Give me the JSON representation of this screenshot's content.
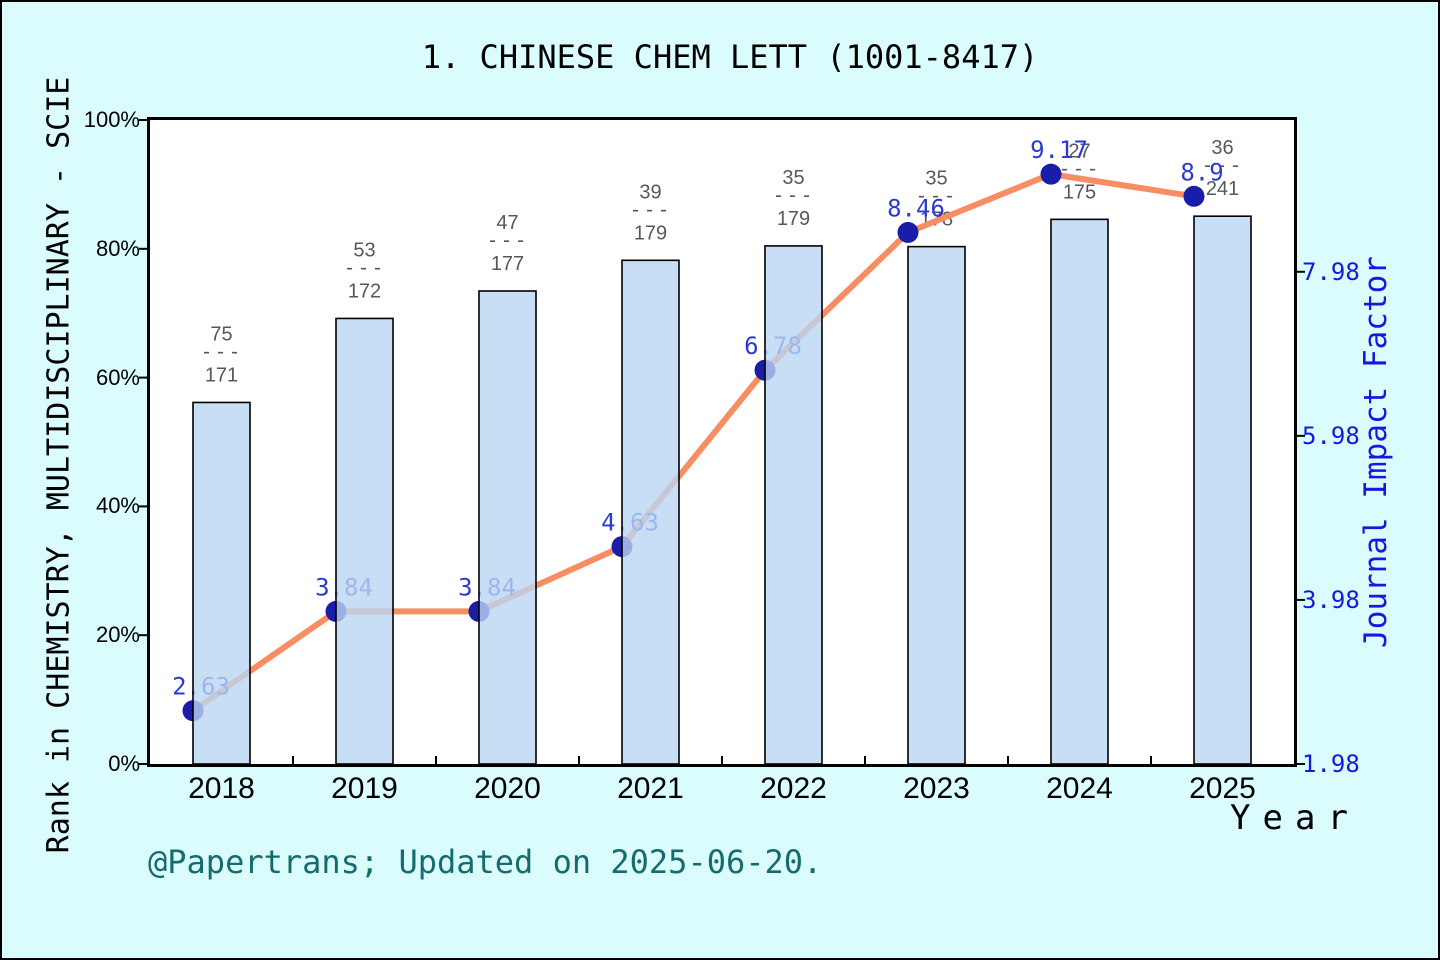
{
  "title": "1. CHINESE CHEM LETT (1001-8417)",
  "footer": "@Papertrans; Updated on 2025-06-20.",
  "chart_data": {
    "type": "bar+line (dual axis)",
    "title": "1. CHINESE CHEM LETT (1001-8417)",
    "categories": [
      "2018",
      "2019",
      "2020",
      "2021",
      "2022",
      "2023",
      "2024",
      "2025"
    ],
    "bar_series": {
      "name": "Rank in CHEMISTRY, MULTIDISCIPLINARY - SCIE (rank/total, bar height = percentile)",
      "axis": "left",
      "rank": [
        75,
        53,
        47,
        39,
        35,
        35,
        27,
        36
      ],
      "total": [
        171,
        172,
        177,
        179,
        179,
        178,
        175,
        241
      ],
      "fraction_labels": [
        "75/171",
        "53/172",
        "47/177",
        "39/179",
        "35/179",
        "35/178",
        "27/175",
        "36/241"
      ],
      "percentile_values": [
        56.1,
        69.2,
        73.4,
        78.2,
        80.4,
        80.3,
        84.6,
        85.1
      ]
    },
    "line_series": {
      "name": "Journal Impact Factor",
      "axis": "right",
      "values": [
        2.63,
        3.84,
        3.84,
        4.63,
        6.78,
        8.46,
        9.17,
        8.9
      ],
      "labels": [
        "2.63",
        "3.84",
        "3.84",
        "4.63",
        "6.78",
        "8.46",
        "9.17",
        "8.9"
      ]
    },
    "left_axis": {
      "label": "Rank in CHEMISTRY, MULTIDISCIPLINARY - SCIE",
      "range": [
        0,
        100
      ],
      "ticks": [
        {
          "value": 0,
          "label": "0%"
        },
        {
          "value": 20,
          "label": "20%"
        },
        {
          "value": 40,
          "label": "40%"
        },
        {
          "value": 60,
          "label": "60%"
        },
        {
          "value": 80,
          "label": "80%"
        },
        {
          "value": 100,
          "label": "100%"
        }
      ]
    },
    "right_axis": {
      "label": "Journal Impact Factor",
      "range": [
        1.98,
        9.83
      ],
      "ticks": [
        {
          "value": 1.98,
          "label": "1.98"
        },
        {
          "value": 3.98,
          "label": "3.98"
        },
        {
          "value": 5.98,
          "label": "5.98"
        },
        {
          "value": 7.98,
          "label": "7.98"
        }
      ]
    },
    "x_axis": {
      "label": "Year"
    },
    "legend": "none",
    "grid": false,
    "colors": {
      "background": "#DAFCFC",
      "plot_background": "#FFFFFF",
      "bar_fill": "#BAD6F2",
      "bar_border": "#000000",
      "line": "#F78E63",
      "marker": "#191DA8",
      "point_label": "#2B3BD2",
      "right_axis_blue": "#1518DF",
      "fraction_gray": "#55595E",
      "footer_teal": "#156B6E"
    }
  }
}
